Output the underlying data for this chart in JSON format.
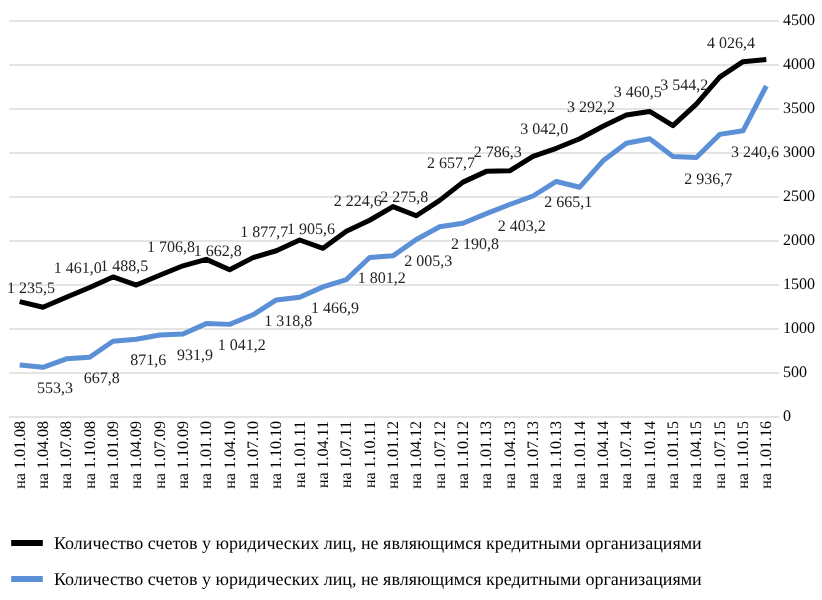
{
  "chart_data": {
    "type": "line",
    "categories": [
      "на 1.01.08",
      "на 1.04.08",
      "на 1.07.08",
      "на 1.10.08",
      "на 1.01.09",
      "на 1.04.09",
      "на 1.07.09",
      "на 1.10.09",
      "на 1.01.10",
      "на 1.04.10",
      "на 1.07.10",
      "на 1.10.10",
      "на 1.01.11",
      "на 1.04.11",
      "на 1.07.11",
      "на 1.10.11",
      "на 1.01.12",
      "на 1.04.12",
      "на 1.07.12",
      "на 1.10.12",
      "на 1.01.13",
      "на 1.04.13",
      "на 1.07.13",
      "на 1.10.13",
      "на 1.01.14",
      "на 1.04.14",
      "на 1.07.14",
      "на 1.10.14",
      "на 1.01.15",
      "на 1.04.15",
      "на 1.07.15",
      "на 1.10.15",
      "на 1.01.16"
    ],
    "series": [
      {
        "name": "Количество счетов у юридических лиц, не являющимся кредитными организациями",
        "color": "#000000",
        "values": [
          1300,
          1235.5,
          1350,
          1461.0,
          1580,
          1488.5,
          1600,
          1706.8,
          1780,
          1662.8,
          1800,
          1877.7,
          2000,
          1905.6,
          2100,
          2224.6,
          2380,
          2275.8,
          2450,
          2657.7,
          2780,
          2786.3,
          2950,
          3042.0,
          3150,
          3292.2,
          3420,
          3460.5,
          3300,
          3544.2,
          3850,
          4026.4,
          4050
        ],
        "value_labels": [
          null,
          "1 235,5",
          null,
          "1 461,0",
          null,
          "1 488,5",
          null,
          "1 706,8",
          null,
          "1 662,8",
          null,
          "1 877,7",
          null,
          "1 905,6",
          null,
          "2 224,6",
          null,
          "2 275,8",
          null,
          "2 657,7",
          null,
          "2 786,3",
          null,
          "3 042,0",
          null,
          "3 292,2",
          null,
          "3 460,5",
          null,
          "3 544,2",
          null,
          "4 026,4",
          null
        ]
      },
      {
        "name": "Количество счетов у юридических лиц, не являющимся кредитными организациями",
        "color": "#5b8fd6",
        "values": [
          580,
          553.3,
          650,
          667.8,
          850,
          871.6,
          920,
          931.9,
          1050,
          1041.2,
          1150,
          1318.8,
          1350,
          1466.9,
          1550,
          1801.2,
          1820,
          2005.3,
          2150,
          2190.8,
          2300,
          2403.2,
          2500,
          2665.1,
          2600,
          2900,
          3100,
          3150,
          2950,
          2936.7,
          3200,
          3240.6,
          3750
        ],
        "value_labels": [
          null,
          "553,3",
          null,
          "667,8",
          null,
          "871,6",
          null,
          "931,9",
          null,
          "1 041,2",
          null,
          "1 318,8",
          null,
          "1 466,9",
          null,
          "1 801,2",
          null,
          "2 005,3",
          null,
          "2 190,8",
          null,
          "2 403,2",
          null,
          "2 665,1",
          null,
          null,
          null,
          null,
          null,
          "2 936,7",
          null,
          "3 240,6",
          null
        ]
      }
    ],
    "ylim": [
      0,
      4500
    ],
    "yticks": [
      0,
      500,
      1000,
      1500,
      2000,
      2500,
      3000,
      3500,
      4000,
      4500
    ],
    "grid": "y",
    "legend": "bottom",
    "marker": "none",
    "line_style": "solid"
  }
}
